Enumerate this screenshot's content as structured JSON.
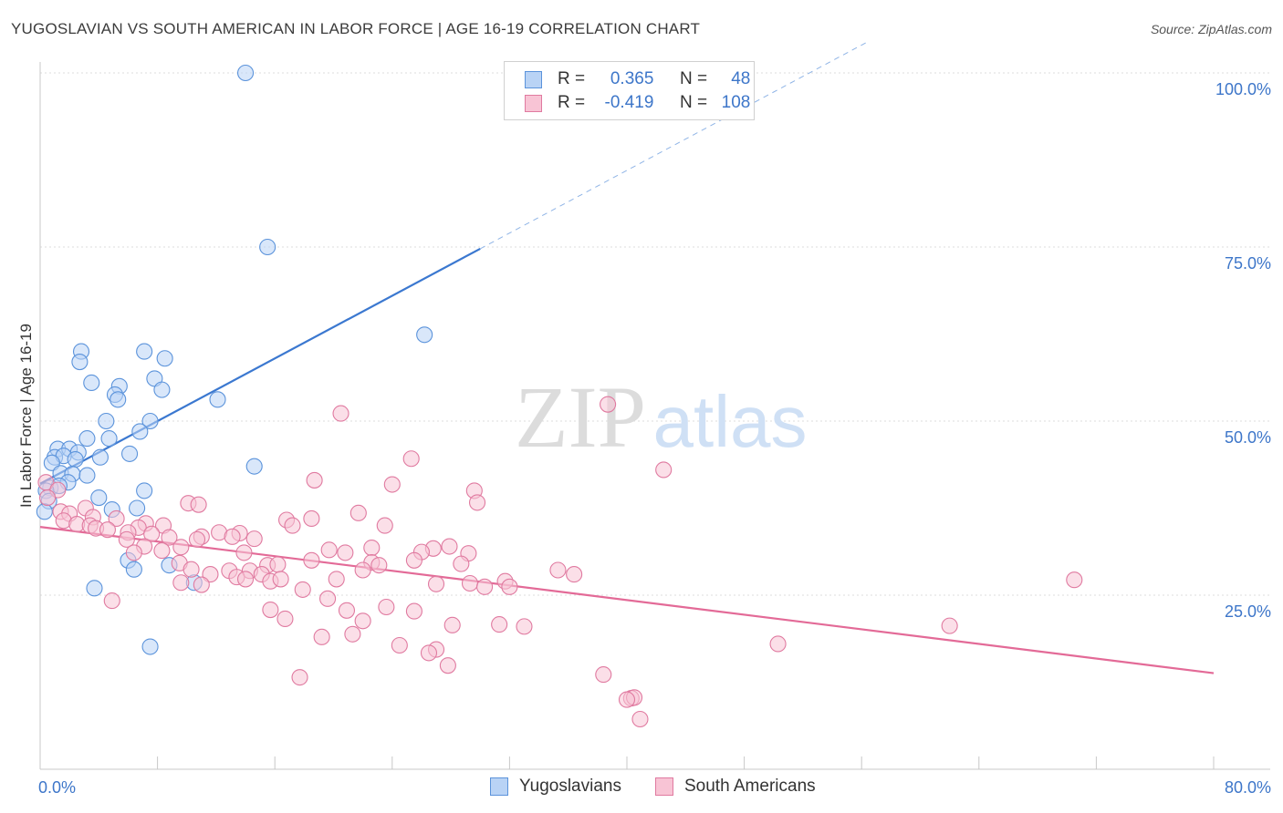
{
  "title": "YUGOSLAVIAN VS SOUTH AMERICAN IN LABOR FORCE | AGE 16-19 CORRELATION CHART",
  "source": "Source: ZipAtlas.com",
  "watermark": {
    "zip": "ZIP",
    "atlas": "atlas"
  },
  "legend": {
    "r_label": "R =",
    "n_label": "N =",
    "series": [
      {
        "name": "Yugoslavians",
        "r": "0.365",
        "n": "48",
        "fill": "#b9d3f5",
        "stroke": "#5b93db"
      },
      {
        "name": "South Americans",
        "r": "-0.419",
        "n": "108",
        "fill": "#f8c4d5",
        "stroke": "#e07aa0"
      }
    ]
  },
  "chart_data": {
    "type": "scatter",
    "xlabel": "",
    "ylabel": "In Labor Force | Age 16-19",
    "xlim": [
      0,
      80
    ],
    "ylim": [
      0,
      100
    ],
    "x_tick_labels": [
      "0.0%",
      "80.0%"
    ],
    "y_ticks": [
      25,
      50,
      75,
      100
    ],
    "y_tick_labels": [
      "25.0%",
      "50.0%",
      "75.0%",
      "100.0%"
    ],
    "grid": true,
    "colors": {
      "blue": "#3b78d0",
      "pink": "#e36a97",
      "axis_text": "#3d76c9"
    },
    "series": [
      {
        "name": "Yugoslavians",
        "points": [
          [
            14.0,
            100.0
          ],
          [
            15.5,
            75.0
          ],
          [
            26.2,
            62.4
          ],
          [
            2.8,
            60.0
          ],
          [
            7.1,
            60.0
          ],
          [
            8.5,
            59.0
          ],
          [
            2.7,
            58.5
          ],
          [
            7.8,
            56.1
          ],
          [
            3.5,
            55.5
          ],
          [
            5.4,
            55.0
          ],
          [
            8.3,
            54.5
          ],
          [
            5.1,
            53.8
          ],
          [
            5.3,
            53.1
          ],
          [
            12.1,
            53.1
          ],
          [
            4.5,
            50.0
          ],
          [
            7.5,
            50.0
          ],
          [
            6.8,
            48.5
          ],
          [
            3.2,
            47.5
          ],
          [
            4.7,
            47.5
          ],
          [
            1.2,
            46.0
          ],
          [
            2.0,
            46.0
          ],
          [
            2.6,
            45.5
          ],
          [
            6.1,
            45.3
          ],
          [
            1.0,
            44.8
          ],
          [
            1.6,
            45.0
          ],
          [
            2.4,
            44.5
          ],
          [
            4.1,
            44.8
          ],
          [
            0.8,
            44.0
          ],
          [
            14.6,
            43.5
          ],
          [
            1.4,
            42.5
          ],
          [
            2.2,
            42.4
          ],
          [
            3.2,
            42.2
          ],
          [
            1.9,
            41.2
          ],
          [
            0.7,
            40.4
          ],
          [
            1.3,
            40.7
          ],
          [
            0.4,
            40.0
          ],
          [
            7.1,
            40.0
          ],
          [
            4.0,
            39.0
          ],
          [
            0.6,
            38.5
          ],
          [
            4.9,
            37.3
          ],
          [
            6.6,
            37.5
          ],
          [
            0.3,
            37.0
          ],
          [
            6.0,
            30.0
          ],
          [
            6.4,
            28.7
          ],
          [
            8.8,
            29.3
          ],
          [
            10.5,
            26.8
          ],
          [
            3.7,
            26.0
          ],
          [
            7.5,
            17.6
          ]
        ]
      },
      {
        "name": "South Americans",
        "points": [
          [
            38.7,
            52.4
          ],
          [
            20.5,
            51.1
          ],
          [
            25.3,
            44.6
          ],
          [
            42.5,
            43.0
          ],
          [
            18.7,
            41.5
          ],
          [
            24.0,
            40.9
          ],
          [
            29.6,
            40.0
          ],
          [
            0.4,
            41.2
          ],
          [
            1.2,
            40.1
          ],
          [
            10.1,
            38.2
          ],
          [
            10.8,
            38.0
          ],
          [
            29.8,
            38.3
          ],
          [
            3.1,
            37.5
          ],
          [
            1.4,
            37.0
          ],
          [
            21.7,
            36.8
          ],
          [
            2.0,
            36.7
          ],
          [
            3.6,
            36.2
          ],
          [
            5.2,
            36.0
          ],
          [
            16.8,
            35.8
          ],
          [
            18.5,
            36.0
          ],
          [
            1.6,
            35.7
          ],
          [
            2.5,
            35.2
          ],
          [
            3.4,
            35.0
          ],
          [
            7.2,
            35.3
          ],
          [
            23.5,
            35.0
          ],
          [
            3.8,
            34.6
          ],
          [
            4.6,
            34.4
          ],
          [
            6.7,
            34.7
          ],
          [
            8.4,
            35.0
          ],
          [
            17.2,
            35.0
          ],
          [
            6.0,
            34.0
          ],
          [
            7.6,
            33.8
          ],
          [
            12.2,
            34.0
          ],
          [
            13.6,
            33.9
          ],
          [
            11.0,
            33.4
          ],
          [
            13.1,
            33.4
          ],
          [
            14.6,
            33.1
          ],
          [
            5.9,
            33.0
          ],
          [
            8.8,
            33.3
          ],
          [
            10.7,
            33.0
          ],
          [
            7.1,
            32.0
          ],
          [
            9.6,
            31.9
          ],
          [
            19.7,
            31.5
          ],
          [
            22.6,
            31.8
          ],
          [
            26.8,
            31.7
          ],
          [
            27.9,
            32.0
          ],
          [
            6.4,
            31.1
          ],
          [
            8.3,
            31.4
          ],
          [
            13.9,
            31.1
          ],
          [
            20.8,
            31.1
          ],
          [
            26.0,
            31.2
          ],
          [
            29.2,
            31.0
          ],
          [
            18.5,
            30.0
          ],
          [
            25.5,
            30.0
          ],
          [
            9.5,
            29.6
          ],
          [
            22.6,
            29.7
          ],
          [
            23.1,
            29.3
          ],
          [
            28.7,
            29.5
          ],
          [
            15.5,
            29.3
          ],
          [
            16.2,
            29.4
          ],
          [
            10.3,
            28.7
          ],
          [
            12.9,
            28.5
          ],
          [
            14.3,
            28.5
          ],
          [
            22.0,
            28.6
          ],
          [
            35.3,
            28.6
          ],
          [
            11.6,
            28.0
          ],
          [
            13.4,
            27.6
          ],
          [
            15.1,
            28.0
          ],
          [
            36.4,
            28.0
          ],
          [
            14.0,
            27.3
          ],
          [
            15.7,
            27.0
          ],
          [
            16.4,
            27.3
          ],
          [
            20.2,
            27.3
          ],
          [
            9.6,
            26.8
          ],
          [
            11.0,
            26.5
          ],
          [
            27.0,
            26.6
          ],
          [
            29.3,
            26.7
          ],
          [
            31.7,
            27.0
          ],
          [
            30.3,
            26.2
          ],
          [
            32.0,
            26.2
          ],
          [
            17.9,
            25.8
          ],
          [
            70.5,
            27.2
          ],
          [
            19.6,
            24.5
          ],
          [
            4.9,
            24.2
          ],
          [
            23.6,
            23.3
          ],
          [
            15.7,
            22.9
          ],
          [
            20.9,
            22.8
          ],
          [
            25.5,
            22.7
          ],
          [
            16.7,
            21.6
          ],
          [
            22.0,
            21.3
          ],
          [
            28.1,
            20.7
          ],
          [
            31.3,
            20.8
          ],
          [
            33.0,
            20.5
          ],
          [
            62.0,
            20.6
          ],
          [
            21.3,
            19.4
          ],
          [
            19.2,
            19.0
          ],
          [
            24.5,
            17.8
          ],
          [
            27.0,
            17.2
          ],
          [
            26.5,
            16.7
          ],
          [
            50.3,
            18.0
          ],
          [
            27.8,
            14.9
          ],
          [
            17.7,
            13.2
          ],
          [
            38.4,
            13.6
          ],
          [
            40.3,
            10.2
          ],
          [
            40.5,
            10.3
          ],
          [
            40.0,
            10.0
          ],
          [
            40.9,
            7.2
          ],
          [
            0.5,
            39.0
          ]
        ]
      }
    ],
    "trendlines": [
      {
        "series": "Yugoslavians",
        "x": [
          0,
          80
        ],
        "y": [
          41.0,
          131.0
        ],
        "solid_until_x": 30
      }
    ],
    "trendlines_pink": [
      {
        "series": "South Americans",
        "x": [
          0,
          80
        ],
        "y": [
          34.8,
          13.8
        ]
      }
    ]
  }
}
